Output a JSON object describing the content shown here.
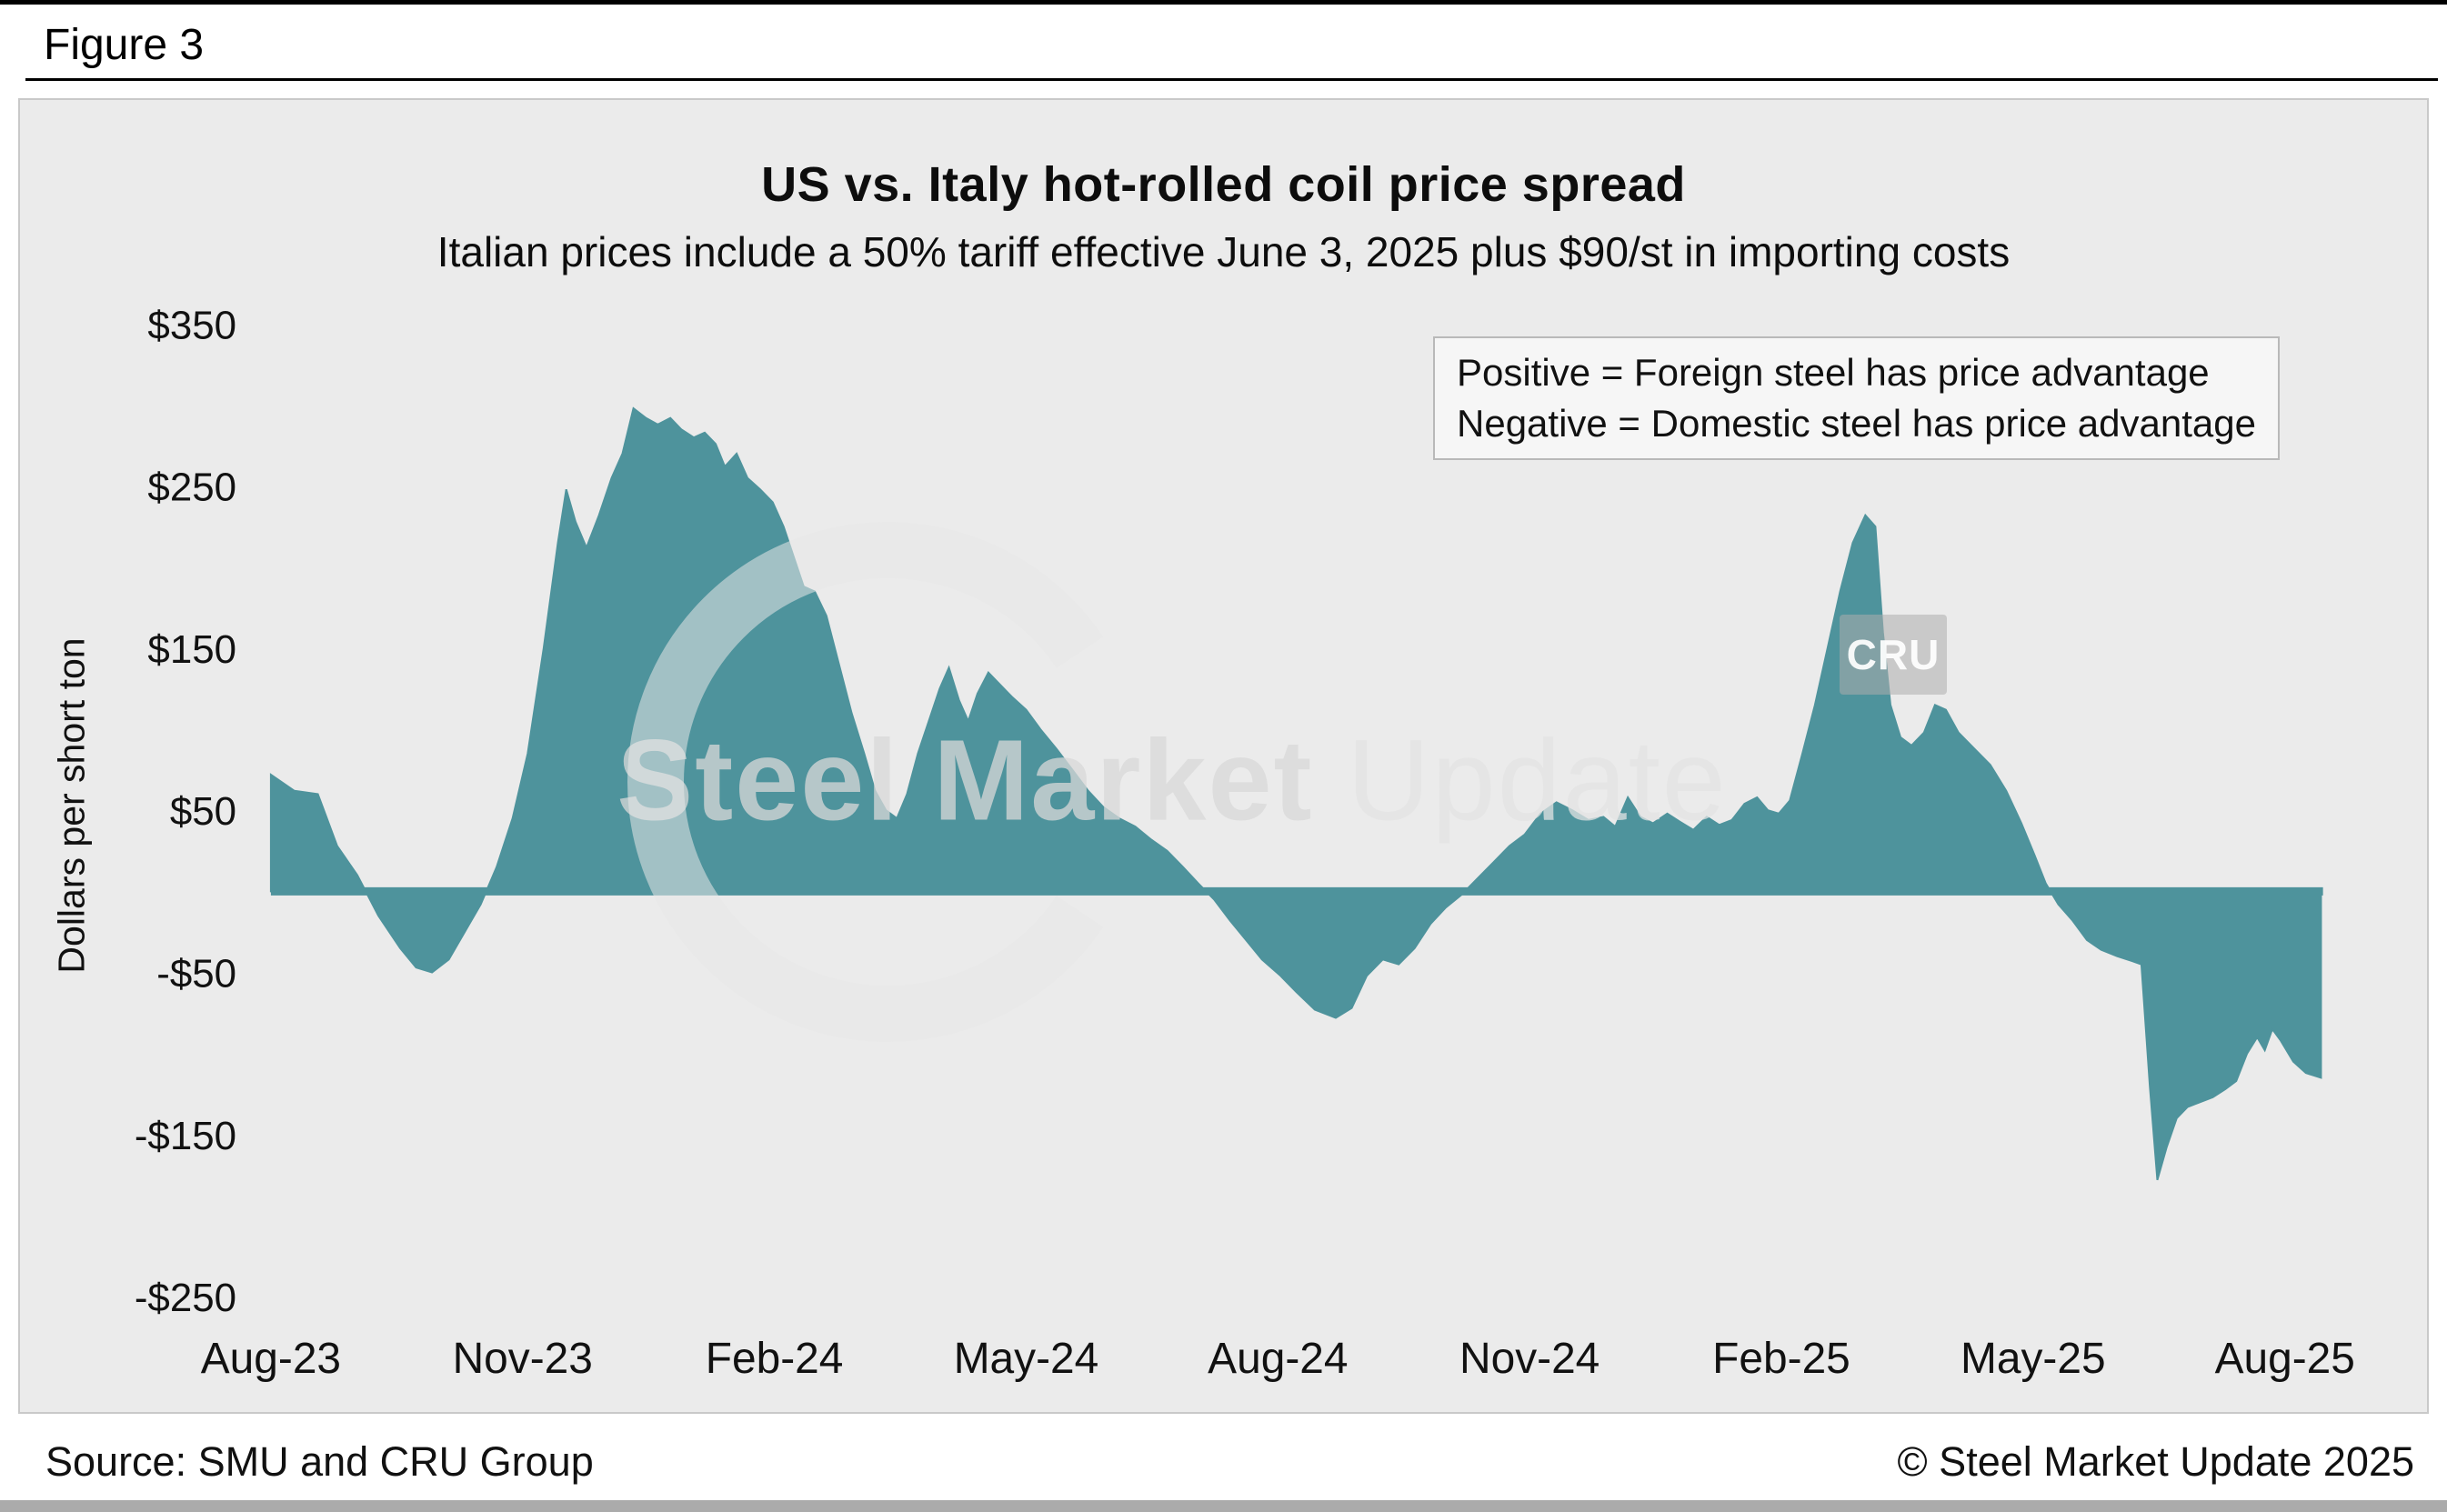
{
  "figure_label": "Figure 3",
  "chart_data": {
    "type": "area",
    "title": "US vs. Italy hot-rolled coil price spread",
    "subtitle": "Italian prices include a 50% tariff effective June 3, 2025 plus $90/st in importing costs",
    "ylabel": "Dollars per short ton",
    "series_name": "US minus Italy HRC price spread",
    "x_unit": "months since Aug-2023",
    "ylim": [
      -250,
      350
    ],
    "xlim_months": [
      0,
      24.43
    ],
    "baseline": 0,
    "grid": false,
    "fill_color": "#4e939c",
    "yticks": [
      {
        "v": 350,
        "label": "$350"
      },
      {
        "v": 250,
        "label": "$250"
      },
      {
        "v": 150,
        "label": "$150"
      },
      {
        "v": 50,
        "label": "$50"
      },
      {
        "v": -50,
        "label": "-$50"
      },
      {
        "v": -150,
        "label": "-$150"
      },
      {
        "v": -250,
        "label": "-$250"
      }
    ],
    "xticks": [
      {
        "t": 0,
        "label": "Aug-23"
      },
      {
        "t": 3,
        "label": "Nov-23"
      },
      {
        "t": 6,
        "label": "Feb-24"
      },
      {
        "t": 9,
        "label": "May-24"
      },
      {
        "t": 12,
        "label": "Aug-24"
      },
      {
        "t": 15,
        "label": "Nov-24"
      },
      {
        "t": 18,
        "label": "Feb-25"
      },
      {
        "t": 21,
        "label": "May-25"
      },
      {
        "t": 24,
        "label": "Aug-25"
      }
    ],
    "points": [
      [
        0,
        72
      ],
      [
        0.28,
        62
      ],
      [
        0.56,
        60
      ],
      [
        0.79,
        28
      ],
      [
        1.03,
        10
      ],
      [
        1.28,
        -15
      ],
      [
        1.54,
        -35
      ],
      [
        1.73,
        -47
      ],
      [
        1.92,
        -50
      ],
      [
        2.12,
        -42
      ],
      [
        2.31,
        -25
      ],
      [
        2.5,
        -8
      ],
      [
        2.69,
        15
      ],
      [
        2.88,
        45
      ],
      [
        3.06,
        85
      ],
      [
        3.25,
        150
      ],
      [
        3.42,
        215
      ],
      [
        3.52,
        248
      ],
      [
        3.63,
        228
      ],
      [
        3.76,
        212
      ],
      [
        3.91,
        232
      ],
      [
        4.06,
        255
      ],
      [
        4.19,
        270
      ],
      [
        4.32,
        298
      ],
      [
        4.47,
        292
      ],
      [
        4.61,
        288
      ],
      [
        4.76,
        292
      ],
      [
        4.89,
        285
      ],
      [
        5.04,
        280
      ],
      [
        5.17,
        283
      ],
      [
        5.3,
        276
      ],
      [
        5.41,
        262
      ],
      [
        5.55,
        270
      ],
      [
        5.68,
        255
      ],
      [
        5.83,
        248
      ],
      [
        5.98,
        240
      ],
      [
        6.11,
        225
      ],
      [
        6.24,
        205
      ],
      [
        6.35,
        188
      ],
      [
        6.48,
        185
      ],
      [
        6.62,
        170
      ],
      [
        6.77,
        140
      ],
      [
        6.92,
        110
      ],
      [
        7.07,
        85
      ],
      [
        7.2,
        62
      ],
      [
        7.33,
        50
      ],
      [
        7.46,
        45
      ],
      [
        7.58,
        60
      ],
      [
        7.71,
        85
      ],
      [
        7.84,
        105
      ],
      [
        7.97,
        125
      ],
      [
        8.08,
        138
      ],
      [
        8.2,
        118
      ],
      [
        8.31,
        105
      ],
      [
        8.42,
        122
      ],
      [
        8.55,
        135
      ],
      [
        8.68,
        128
      ],
      [
        8.83,
        120
      ],
      [
        9,
        112
      ],
      [
        9.17,
        100
      ],
      [
        9.36,
        88
      ],
      [
        9.55,
        75
      ],
      [
        9.74,
        62
      ],
      [
        9.92,
        52
      ],
      [
        10.11,
        45
      ],
      [
        10.3,
        40
      ],
      [
        10.49,
        32
      ],
      [
        10.68,
        25
      ],
      [
        10.87,
        15
      ],
      [
        11.05,
        5
      ],
      [
        11.24,
        -5
      ],
      [
        11.43,
        -18
      ],
      [
        11.62,
        -30
      ],
      [
        11.81,
        -42
      ],
      [
        12.03,
        -52
      ],
      [
        12.22,
        -62
      ],
      [
        12.44,
        -73
      ],
      [
        12.69,
        -78
      ],
      [
        12.88,
        -72
      ],
      [
        13.06,
        -52
      ],
      [
        13.25,
        -42
      ],
      [
        13.44,
        -45
      ],
      [
        13.63,
        -35
      ],
      [
        13.82,
        -20
      ],
      [
        14,
        -10
      ],
      [
        14.19,
        -2
      ],
      [
        14.38,
        8
      ],
      [
        14.57,
        18
      ],
      [
        14.76,
        28
      ],
      [
        14.94,
        35
      ],
      [
        15.13,
        48
      ],
      [
        15.32,
        55
      ],
      [
        15.51,
        50
      ],
      [
        15.7,
        44
      ],
      [
        15.88,
        46
      ],
      [
        16.02,
        40
      ],
      [
        16.17,
        58
      ],
      [
        16.32,
        46
      ],
      [
        16.47,
        42
      ],
      [
        16.64,
        48
      ],
      [
        16.79,
        43
      ],
      [
        16.95,
        38
      ],
      [
        17.11,
        46
      ],
      [
        17.26,
        41
      ],
      [
        17.41,
        44
      ],
      [
        17.56,
        54
      ],
      [
        17.71,
        58
      ],
      [
        17.84,
        50
      ],
      [
        17.97,
        48
      ],
      [
        18.1,
        56
      ],
      [
        18.25,
        85
      ],
      [
        18.4,
        115
      ],
      [
        18.55,
        150
      ],
      [
        18.7,
        185
      ],
      [
        18.85,
        215
      ],
      [
        19,
        232
      ],
      [
        19.12,
        225
      ],
      [
        19.21,
        160
      ],
      [
        19.3,
        115
      ],
      [
        19.42,
        95
      ],
      [
        19.55,
        90
      ],
      [
        19.7,
        98
      ],
      [
        19.83,
        115
      ],
      [
        19.96,
        112
      ],
      [
        20.11,
        98
      ],
      [
        20.3,
        88
      ],
      [
        20.49,
        78
      ],
      [
        20.68,
        62
      ],
      [
        20.86,
        42
      ],
      [
        21.02,
        22
      ],
      [
        21.15,
        5
      ],
      [
        21.3,
        -8
      ],
      [
        21.47,
        -18
      ],
      [
        21.64,
        -30
      ],
      [
        21.81,
        -36
      ],
      [
        22,
        -40
      ],
      [
        22.18,
        -43
      ],
      [
        22.29,
        -45
      ],
      [
        22.39,
        -120
      ],
      [
        22.48,
        -178
      ],
      [
        22.59,
        -158
      ],
      [
        22.71,
        -140
      ],
      [
        22.84,
        -133
      ],
      [
        22.99,
        -130
      ],
      [
        23.14,
        -127
      ],
      [
        23.29,
        -122
      ],
      [
        23.42,
        -117
      ],
      [
        23.55,
        -100
      ],
      [
        23.67,
        -90
      ],
      [
        23.76,
        -98
      ],
      [
        23.85,
        -85
      ],
      [
        23.95,
        -92
      ],
      [
        24.1,
        -105
      ],
      [
        24.25,
        -112
      ],
      [
        24.43,
        -115
      ]
    ]
  },
  "annotation_box": {
    "line1": "Positive = Foreign steel has price advantage",
    "line2": "Negative = Domestic steel has price advantage"
  },
  "watermark": {
    "part1": "Steel Market",
    "part2": " Update",
    "badge": "CRU"
  },
  "footer": {
    "source": "Source: SMU and CRU Group",
    "copyright": "© Steel Market Update 2025"
  }
}
